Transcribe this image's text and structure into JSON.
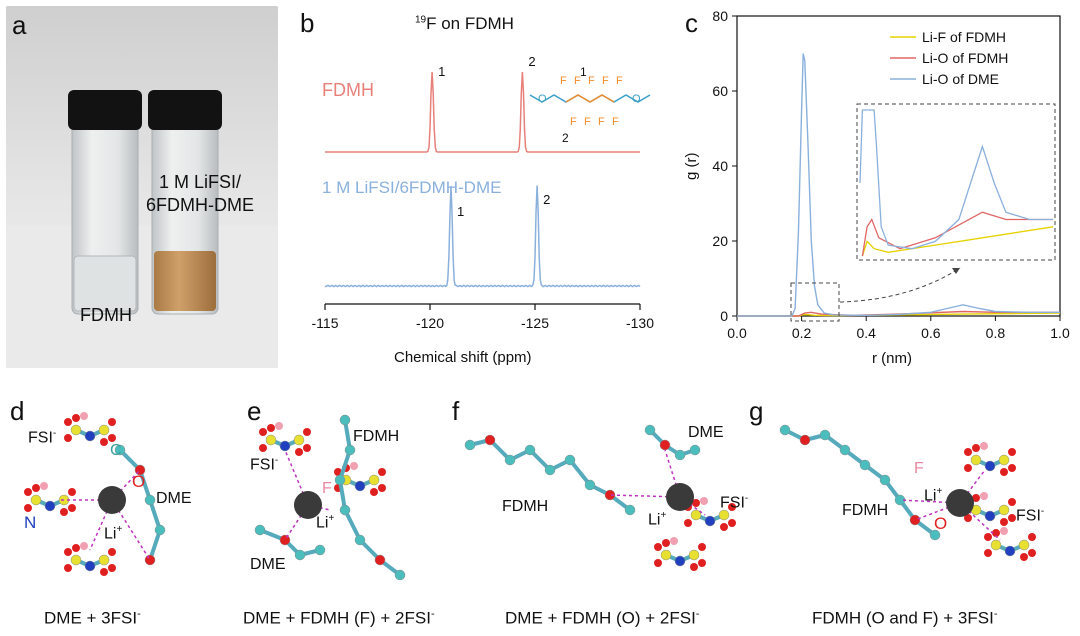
{
  "panel_a": {
    "letter": "a",
    "label_left": "FDMH",
    "label_right_line1": "1 M LiFSI/",
    "label_right_line2": "6FDMH-DME"
  },
  "panel_b": {
    "letter": "b",
    "title": "19F on FDMH",
    "title_sup": "19",
    "title_rest": "F on FDMH",
    "trace_top_label": "FDMH",
    "trace_bottom_label": "1 M LiFSI/6FDMH-DME",
    "xlabel": "Chemical shift (ppm)",
    "xticks": [
      "-115",
      "-120",
      "-125",
      "-130"
    ],
    "peak_labels": [
      "1",
      "2"
    ],
    "molecule_labels": {
      "top": "1",
      "bottom": "2",
      "F": "F"
    },
    "colors": {
      "top": "#e8807a",
      "bottom": "#8ab0dc",
      "fluorine": "#f08c2c",
      "oxygen": "#3aa0c8"
    }
  },
  "panel_c": {
    "letter": "c",
    "ylabel": "g (r)",
    "xlabel": "r (nm)",
    "xticks": [
      "0.0",
      "0.2",
      "0.4",
      "0.6",
      "0.8",
      "1.0"
    ],
    "yticks": [
      "0",
      "20",
      "40",
      "60",
      "80"
    ],
    "legend": [
      {
        "name": "Li-F of FDMH",
        "color": "#e6d200"
      },
      {
        "name": "Li-O of FDMH",
        "color": "#e06666"
      },
      {
        "name": "Li-O of DME",
        "color": "#8ab0dc"
      }
    ]
  },
  "chart_data": [
    {
      "type": "line",
      "panel": "b",
      "title": "19F on FDMH",
      "xlabel": "Chemical shift (ppm)",
      "ylabel": "",
      "xlim": [
        -115,
        -130
      ],
      "series": [
        {
          "name": "FDMH",
          "peaks_ppm": [
            -120.1,
            -124.4
          ]
        },
        {
          "name": "1 M LiFSI/6FDMH-DME",
          "peaks_ppm": [
            -121.0,
            -125.1
          ]
        }
      ]
    },
    {
      "type": "line",
      "panel": "c",
      "xlabel": "r (nm)",
      "ylabel": "g (r)",
      "xlim": [
        0.0,
        1.0
      ],
      "ylim": [
        0,
        80
      ],
      "legend_position": "top-right",
      "series": [
        {
          "name": "Li-F of FDMH",
          "x": [
            0.0,
            0.19,
            0.21,
            0.24,
            0.3,
            0.5,
            0.7,
            1.0
          ],
          "y": [
            0,
            0,
            0.4,
            0.2,
            0.1,
            0.3,
            0.5,
            0.8
          ]
        },
        {
          "name": "Li-O of FDMH",
          "x": [
            0.0,
            0.19,
            0.21,
            0.23,
            0.26,
            0.35,
            0.5,
            0.7,
            0.8,
            1.0
          ],
          "y": [
            0,
            0,
            0.8,
            1.0,
            0.5,
            0.2,
            0.5,
            1.2,
            1.0,
            1.0
          ]
        },
        {
          "name": "Li-O of DME",
          "x": [
            0.0,
            0.17,
            0.18,
            0.19,
            0.2,
            0.205,
            0.21,
            0.22,
            0.23,
            0.24,
            0.25,
            0.27,
            0.3,
            0.4,
            0.5,
            0.6,
            0.65,
            0.7,
            0.75,
            0.8,
            0.9,
            1.0
          ],
          "y": [
            0,
            0,
            2,
            22,
            55,
            70,
            68,
            45,
            20,
            8,
            3,
            0.8,
            0.3,
            0.2,
            0.4,
            1.0,
            2.0,
            3.0,
            2.0,
            1.2,
            1.0,
            1.0
          ]
        }
      ]
    }
  ],
  "panel_d": {
    "letter": "d",
    "caption": "DME + 3FSI",
    "caption_sup": "-",
    "labels": {
      "fsi": "FSI",
      "fsi_sup": "-",
      "c": "C",
      "o": "O",
      "dme": "DME",
      "n": "N",
      "li": "Li",
      "li_sup": "+"
    }
  },
  "panel_e": {
    "letter": "e",
    "caption": "DME + FDMH (F) + 2FSI",
    "caption_sup": "-",
    "labels": {
      "fdmh": "FDMH",
      "f": "F",
      "fsi": "FSI",
      "fsi_sup": "-",
      "li": "Li",
      "li_sup": "+",
      "dme": "DME"
    }
  },
  "panel_f": {
    "letter": "f",
    "caption": "DME + FDMH (O) + 2FSI",
    "caption_sup": "-",
    "labels": {
      "dme": "DME",
      "fdmh": "FDMH",
      "fsi": "FSI",
      "fsi_sup": "-",
      "li": "Li",
      "li_sup": "+"
    }
  },
  "panel_g": {
    "letter": "g",
    "caption": "FDMH (O and F) + 3FSI",
    "caption_sup": "-",
    "labels": {
      "f": "F",
      "li": "Li",
      "li_sup": "+",
      "fdmh": "FDMH",
      "o": "O",
      "fsi": "FSI",
      "fsi_sup": "-"
    }
  }
}
